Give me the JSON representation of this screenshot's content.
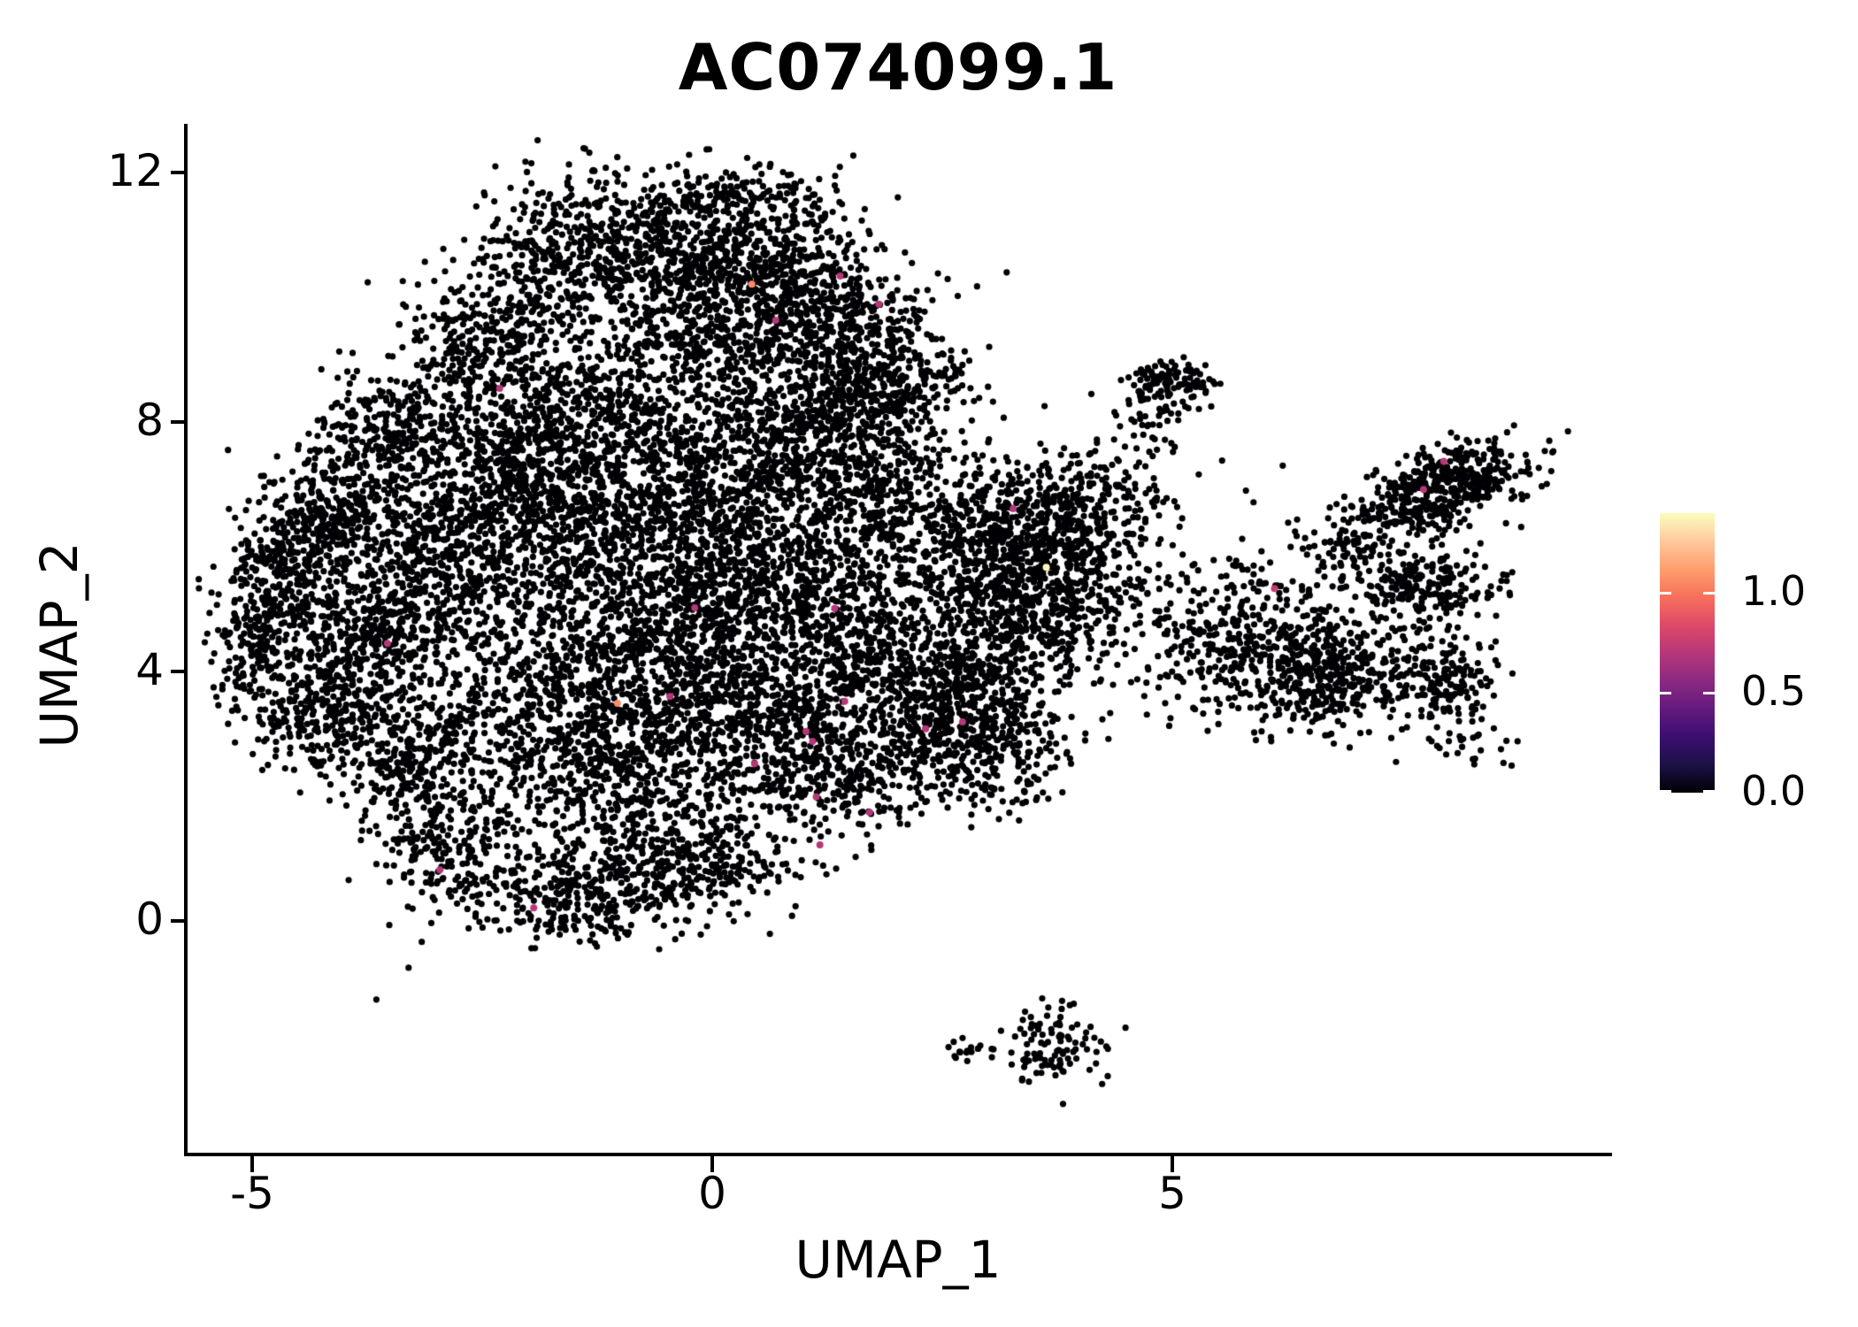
{
  "figure": {
    "title": "AC074099.1",
    "x_axis": {
      "label": "UMAP_1"
    },
    "y_axis": {
      "label": "UMAP_2"
    }
  },
  "chart_data": {
    "type": "scatter",
    "title": "AC074099.1",
    "xlabel": "UMAP_1",
    "ylabel": "UMAP_2",
    "xlim": [
      -5.7,
      9.8
    ],
    "ylim": [
      -3.7,
      12.8
    ],
    "x_ticks": {
      "values": [
        -5,
        0,
        5
      ],
      "labels": [
        "-5",
        "0",
        "5"
      ]
    },
    "y_ticks": {
      "values": [
        0,
        4,
        8,
        12
      ],
      "labels": [
        "0",
        "4",
        "8",
        "12"
      ]
    },
    "grid": false,
    "legend_position": "right",
    "colorbar": {
      "min": 0.0,
      "max": 1.4,
      "ticks": [
        0.0,
        0.5,
        1.0
      ],
      "tick_labels": [
        "0.0",
        "0.5",
        "1.0"
      ],
      "palette_name": "magma",
      "gradient_stops": [
        {
          "t": 0.0,
          "color": "#000004"
        },
        {
          "t": 0.1,
          "color": "#1d1147"
        },
        {
          "t": 0.2,
          "color": "#3b0f70"
        },
        {
          "t": 0.3,
          "color": "#651a80"
        },
        {
          "t": 0.4,
          "color": "#8c2981"
        },
        {
          "t": 0.5,
          "color": "#b73779"
        },
        {
          "t": 0.6,
          "color": "#de4968"
        },
        {
          "t": 0.7,
          "color": "#f7705c"
        },
        {
          "t": 0.8,
          "color": "#fe9f6d"
        },
        {
          "t": 0.9,
          "color": "#fec99e"
        },
        {
          "t": 1.0,
          "color": "#fcfdbf"
        }
      ]
    },
    "point_radius_px": 3.6,
    "highlight_radius_px": 4.0,
    "background_value": 0.0,
    "random_seed": 1234,
    "background_clusters": [
      {
        "x": -1.6,
        "y": 10.6,
        "sx": 0.55,
        "sy": 0.7,
        "n": 380
      },
      {
        "x": -0.4,
        "y": 10.9,
        "sx": 0.6,
        "sy": 0.55,
        "n": 450
      },
      {
        "x": 0.8,
        "y": 10.4,
        "sx": 0.55,
        "sy": 0.65,
        "n": 400
      },
      {
        "x": -2.4,
        "y": 9.4,
        "sx": 0.5,
        "sy": 0.5,
        "n": 260
      },
      {
        "x": 0.1,
        "y": 9.6,
        "sx": 0.75,
        "sy": 0.55,
        "n": 470
      },
      {
        "x": 1.5,
        "y": 9.4,
        "sx": 0.45,
        "sy": 0.55,
        "n": 260
      },
      {
        "x": 1.8,
        "y": 8.6,
        "sx": 0.5,
        "sy": 0.4,
        "n": 280
      },
      {
        "x": 0.4,
        "y": 11.7,
        "sx": 0.55,
        "sy": 0.25,
        "n": 110
      },
      {
        "x": -3.3,
        "y": 7.9,
        "sx": 0.45,
        "sy": 0.5,
        "n": 300
      },
      {
        "x": -4.1,
        "y": 6.6,
        "sx": 0.4,
        "sy": 0.55,
        "n": 300
      },
      {
        "x": -4.6,
        "y": 5.5,
        "sx": 0.33,
        "sy": 0.7,
        "n": 280
      },
      {
        "x": -5.0,
        "y": 4.6,
        "sx": 0.22,
        "sy": 0.55,
        "n": 160
      },
      {
        "x": -3.7,
        "y": 4.6,
        "sx": 0.45,
        "sy": 0.75,
        "n": 420
      },
      {
        "x": -4.3,
        "y": 3.4,
        "sx": 0.35,
        "sy": 0.55,
        "n": 260
      },
      {
        "x": -3.3,
        "y": 2.6,
        "sx": 0.45,
        "sy": 0.6,
        "n": 330
      },
      {
        "x": -2.9,
        "y": 5.7,
        "sx": 0.5,
        "sy": 0.8,
        "n": 450
      },
      {
        "x": -2.1,
        "y": 7.0,
        "sx": 0.6,
        "sy": 0.7,
        "n": 500
      },
      {
        "x": -1.3,
        "y": 8.2,
        "sx": 0.7,
        "sy": 0.55,
        "n": 470
      },
      {
        "x": -1.4,
        "y": 5.9,
        "sx": 0.75,
        "sy": 0.85,
        "n": 580
      },
      {
        "x": -0.2,
        "y": 6.9,
        "sx": 0.65,
        "sy": 0.75,
        "n": 540
      },
      {
        "x": 0.9,
        "y": 7.9,
        "sx": 0.65,
        "sy": 0.65,
        "n": 470
      },
      {
        "x": -0.6,
        "y": 4.3,
        "sx": 0.65,
        "sy": 0.85,
        "n": 540
      },
      {
        "x": 0.6,
        "y": 5.6,
        "sx": 0.65,
        "sy": 0.75,
        "n": 520
      },
      {
        "x": 1.8,
        "y": 6.9,
        "sx": 0.55,
        "sy": 0.65,
        "n": 400
      },
      {
        "x": -1.9,
        "y": 3.4,
        "sx": 0.55,
        "sy": 0.75,
        "n": 430
      },
      {
        "x": -1.0,
        "y": 2.2,
        "sx": 0.55,
        "sy": 0.75,
        "n": 430
      },
      {
        "x": 0.3,
        "y": 3.3,
        "sx": 0.65,
        "sy": 0.85,
        "n": 540
      },
      {
        "x": 1.5,
        "y": 4.5,
        "sx": 0.65,
        "sy": 0.75,
        "n": 500
      },
      {
        "x": 2.9,
        "y": 5.7,
        "sx": 0.55,
        "sy": 0.7,
        "n": 460
      },
      {
        "x": 1.4,
        "y": 2.6,
        "sx": 0.6,
        "sy": 0.6,
        "n": 430
      },
      {
        "x": 2.7,
        "y": 3.7,
        "sx": 0.5,
        "sy": 0.55,
        "n": 420
      },
      {
        "x": -0.2,
        "y": 0.9,
        "sx": 0.55,
        "sy": 0.45,
        "n": 300
      },
      {
        "x": -1.5,
        "y": 0.35,
        "sx": 0.5,
        "sy": 0.35,
        "n": 260
      },
      {
        "x": -2.7,
        "y": 1.2,
        "sx": 0.45,
        "sy": 0.5,
        "n": 240
      },
      {
        "x": 3.0,
        "y": 2.7,
        "sx": 0.45,
        "sy": 0.45,
        "n": 260
      },
      {
        "x": 3.4,
        "y": 4.7,
        "sx": 0.45,
        "sy": 0.6,
        "n": 300
      },
      {
        "x": 3.5,
        "y": 6.4,
        "sx": 0.5,
        "sy": 0.55,
        "n": 320
      },
      {
        "x": 4.0,
        "y": 5.7,
        "sx": 0.35,
        "sy": 0.6,
        "n": 220
      },
      {
        "x": 4.7,
        "y": 5.0,
        "sx": 0.35,
        "sy": 0.75,
        "n": 55
      },
      {
        "x": 4.75,
        "y": 8.0,
        "sx": 0.18,
        "sy": 0.45,
        "n": 45
      },
      {
        "x": 4.3,
        "y": 6.9,
        "sx": 0.45,
        "sy": 0.35,
        "n": 90
      },
      {
        "x": 5.5,
        "y": 5.5,
        "sx": 0.3,
        "sy": 0.25,
        "n": 25
      },
      {
        "x": 5.0,
        "y": 8.62,
        "sx": 0.22,
        "sy": 0.18,
        "n": 110
      },
      {
        "x": 8.05,
        "y": 7.1,
        "sx": 0.42,
        "sy": 0.26,
        "n": 330,
        "slope": 0.25
      },
      {
        "x": 7.65,
        "y": 6.5,
        "sx": 0.4,
        "sy": 0.22,
        "n": 140
      },
      {
        "x": 6.9,
        "y": 6.0,
        "sx": 0.28,
        "sy": 0.35,
        "n": 80
      },
      {
        "x": 7.8,
        "y": 5.3,
        "sx": 0.4,
        "sy": 0.35,
        "n": 230
      },
      {
        "x": 6.1,
        "y": 4.3,
        "sx": 0.5,
        "sy": 0.6,
        "n": 360
      },
      {
        "x": 5.35,
        "y": 4.6,
        "sx": 0.35,
        "sy": 0.5,
        "n": 90
      },
      {
        "x": 6.8,
        "y": 3.9,
        "sx": 0.33,
        "sy": 0.38,
        "n": 220
      },
      {
        "x": 7.9,
        "y": 3.8,
        "sx": 0.3,
        "sy": 0.35,
        "n": 180
      },
      {
        "x": 8.3,
        "y": 2.8,
        "sx": 0.3,
        "sy": 0.18,
        "n": 25
      },
      {
        "x": 3.7,
        "y": -2.0,
        "sx": 0.28,
        "sy": 0.32,
        "n": 100
      },
      {
        "x": 2.85,
        "y": -2.1,
        "sx": 0.18,
        "sy": 0.1,
        "n": 18
      }
    ],
    "outlier_points": [
      {
        "x": -3.65,
        "y": -1.26
      },
      {
        "x": -3.3,
        "y": -0.75
      },
      {
        "x": 4.3,
        "y": -2.05
      },
      {
        "x": 3.2,
        "y": 10.4
      },
      {
        "x": 4.12,
        "y": 8.45
      },
      {
        "x": 2.6,
        "y": 8.7
      },
      {
        "x": 5.8,
        "y": 6.9
      },
      {
        "x": 6.2,
        "y": 7.3
      }
    ],
    "expressing_cells": [
      {
        "x": 0.43,
        "y": 10.21,
        "value": 1.06
      },
      {
        "x": 1.39,
        "y": 10.34,
        "value": 0.7
      },
      {
        "x": 1.81,
        "y": 9.89,
        "value": 0.7
      },
      {
        "x": 0.69,
        "y": 9.63,
        "value": 0.7
      },
      {
        "x": -2.31,
        "y": 8.54,
        "value": 0.7
      },
      {
        "x": 3.27,
        "y": 6.61,
        "value": 0.7
      },
      {
        "x": 3.63,
        "y": 5.67,
        "value": 1.39
      },
      {
        "x": -3.53,
        "y": 4.45,
        "value": 0.7
      },
      {
        "x": -0.19,
        "y": 5.02,
        "value": 0.7
      },
      {
        "x": 1.33,
        "y": 5.01,
        "value": 0.7
      },
      {
        "x": -0.46,
        "y": 3.6,
        "value": 0.7
      },
      {
        "x": -1.03,
        "y": 3.49,
        "value": 1.06
      },
      {
        "x": 1.44,
        "y": 3.52,
        "value": 0.7
      },
      {
        "x": 1.02,
        "y": 3.04,
        "value": 0.7
      },
      {
        "x": 1.09,
        "y": 2.88,
        "value": 0.7
      },
      {
        "x": 0.46,
        "y": 2.52,
        "value": 0.7
      },
      {
        "x": 1.13,
        "y": 1.99,
        "value": 0.7
      },
      {
        "x": 1.71,
        "y": 1.74,
        "value": 0.7
      },
      {
        "x": 1.17,
        "y": 1.22,
        "value": 0.7
      },
      {
        "x": -1.94,
        "y": 0.21,
        "value": 0.7
      },
      {
        "x": -2.96,
        "y": 0.82,
        "value": 0.7
      },
      {
        "x": 2.72,
        "y": 3.19,
        "value": 0.7
      },
      {
        "x": 2.32,
        "y": 3.08,
        "value": 0.7
      },
      {
        "x": 7.95,
        "y": 7.37,
        "value": 0.7
      },
      {
        "x": 7.73,
        "y": 6.92,
        "value": 0.7
      },
      {
        "x": 6.11,
        "y": 5.33,
        "value": 0.75
      }
    ]
  }
}
